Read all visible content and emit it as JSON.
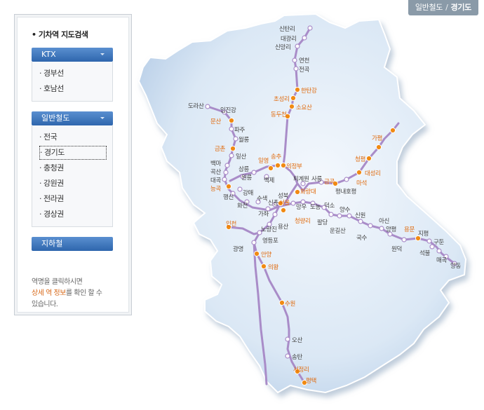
{
  "breadcrumb": {
    "section": "일반철도",
    "separator": "/",
    "current": "경기도"
  },
  "panel": {
    "title": "기차역 지도검색",
    "ktx": {
      "label": "KTX",
      "items": [
        "경부선",
        "호남선"
      ]
    },
    "general": {
      "label": "일반철도",
      "items": [
        "전국",
        "경기도",
        "충청권",
        "강원권",
        "전라권",
        "경상권"
      ],
      "selected": 1
    },
    "subway": {
      "label": "지하철"
    },
    "hint": {
      "line1": "역명을 클릭하시면",
      "highlight": "상세 역 정보",
      "line2_rest": "를 확인 할 수",
      "line3": "있습니다."
    }
  },
  "colors": {
    "line": "#a98cc8",
    "major_station": "#f08a14",
    "major_label": "#e06a0c",
    "minor_label": "#444444",
    "region_fill": "#dde9f6"
  },
  "stations": [
    {
      "name": "신탄리",
      "major": false
    },
    {
      "name": "대광리",
      "major": false
    },
    {
      "name": "신망리",
      "major": false
    },
    {
      "name": "연천",
      "major": false
    },
    {
      "name": "전곡",
      "major": false
    },
    {
      "name": "한탄강",
      "major": true
    },
    {
      "name": "초성리",
      "major": true
    },
    {
      "name": "소요산",
      "major": true
    },
    {
      "name": "동두천",
      "major": true
    },
    {
      "name": "도라산",
      "major": false
    },
    {
      "name": "임진강",
      "major": false
    },
    {
      "name": "문산",
      "major": true
    },
    {
      "name": "파주",
      "major": false
    },
    {
      "name": "월롱",
      "major": false
    },
    {
      "name": "금촌",
      "major": true
    },
    {
      "name": "일산",
      "major": false
    },
    {
      "name": "백마",
      "major": false
    },
    {
      "name": "곡산",
      "major": false
    },
    {
      "name": "대곡",
      "major": false
    },
    {
      "name": "능곡",
      "major": true
    },
    {
      "name": "행신",
      "major": false
    },
    {
      "name": "강매",
      "major": false
    },
    {
      "name": "화전",
      "major": false
    },
    {
      "name": "수색",
      "major": false
    },
    {
      "name": "가좌",
      "major": false
    },
    {
      "name": "신촌",
      "major": false
    },
    {
      "name": "서울",
      "major": true
    },
    {
      "name": "용산",
      "major": false
    },
    {
      "name": "노량진",
      "major": false
    },
    {
      "name": "영등포",
      "major": false
    },
    {
      "name": "인천",
      "major": true
    },
    {
      "name": "광명",
      "major": false
    },
    {
      "name": "안양",
      "major": true
    },
    {
      "name": "의왕",
      "major": true
    },
    {
      "name": "수원",
      "major": true
    },
    {
      "name": "오산",
      "major": false
    },
    {
      "name": "송탄",
      "major": false
    },
    {
      "name": "서정리",
      "major": true
    },
    {
      "name": "평택",
      "major": true
    },
    {
      "name": "삼릉",
      "major": false
    },
    {
      "name": "원릉",
      "major": false
    },
    {
      "name": "일영",
      "major": true
    },
    {
      "name": "송추",
      "major": true
    },
    {
      "name": "의정부",
      "major": true
    },
    {
      "name": "백제",
      "major": false
    },
    {
      "name": "퇴계원",
      "major": false
    },
    {
      "name": "사릉",
      "major": false
    },
    {
      "name": "금곡",
      "major": true
    },
    {
      "name": "화랑대",
      "major": true
    },
    {
      "name": "평내호평",
      "major": false
    },
    {
      "name": "마석",
      "major": true
    },
    {
      "name": "대성리",
      "major": true
    },
    {
      "name": "청평",
      "major": true
    },
    {
      "name": "가평",
      "major": true
    },
    {
      "name": "성북",
      "major": false
    },
    {
      "name": "망우",
      "major": false
    },
    {
      "name": "도농",
      "major": false
    },
    {
      "name": "덕소",
      "major": false
    },
    {
      "name": "팔당",
      "major": false
    },
    {
      "name": "양수",
      "major": false
    },
    {
      "name": "운길산",
      "major": false
    },
    {
      "name": "신원",
      "major": false
    },
    {
      "name": "국수",
      "major": false
    },
    {
      "name": "아신",
      "major": false
    },
    {
      "name": "양평",
      "major": false
    },
    {
      "name": "원덕",
      "major": false
    },
    {
      "name": "용문",
      "major": true
    },
    {
      "name": "지평",
      "major": false
    },
    {
      "name": "석불",
      "major": false
    },
    {
      "name": "구둔",
      "major": false
    },
    {
      "name": "매곡",
      "major": false
    },
    {
      "name": "양동",
      "major": false
    },
    {
      "name": "청량리",
      "major": true
    }
  ]
}
